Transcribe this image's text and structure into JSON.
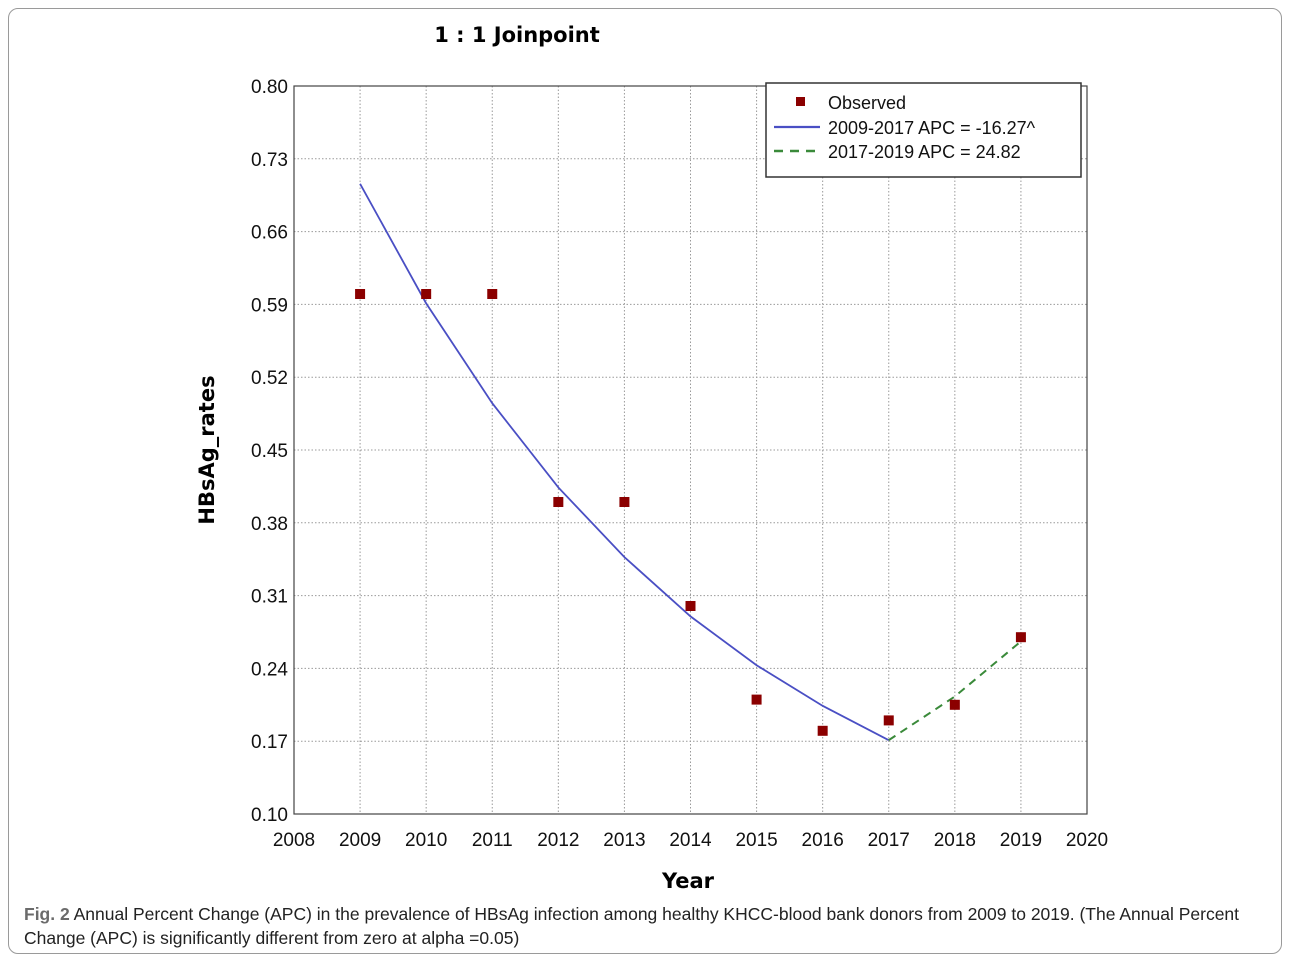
{
  "chart_data": {
    "type": "line",
    "title": "1 : 1 Joinpoint",
    "xlabel": "Year",
    "ylabel": "HBsAg_rates",
    "xlim": [
      2008,
      2020
    ],
    "ylim": [
      0.1,
      0.8
    ],
    "xticks": [
      2008,
      2009,
      2010,
      2011,
      2012,
      2013,
      2014,
      2015,
      2016,
      2017,
      2018,
      2019,
      2020
    ],
    "yticks": [
      "0.10",
      "0.17",
      "0.24",
      "0.31",
      "0.38",
      "0.45",
      "0.52",
      "0.59",
      "0.66",
      "0.73",
      "0.80"
    ],
    "grid": true,
    "legend_position": "top-right",
    "series": [
      {
        "name": "Observed",
        "kind": "scatter",
        "color": "#8b0000",
        "x": [
          2009,
          2010,
          2011,
          2012,
          2013,
          2014,
          2015,
          2016,
          2017,
          2018,
          2019
        ],
        "y": [
          0.6,
          0.6,
          0.6,
          0.4,
          0.4,
          0.3,
          0.21,
          0.18,
          0.19,
          0.205,
          0.27
        ]
      },
      {
        "name": "2009-2017 APC   = -16.27^",
        "kind": "line",
        "color": "#4a4fc4",
        "x": [
          2009,
          2010,
          2011,
          2012,
          2013,
          2014,
          2015,
          2016,
          2017
        ],
        "y": [
          0.706,
          0.591,
          0.495,
          0.414,
          0.347,
          0.29,
          0.243,
          0.204,
          0.171
        ]
      },
      {
        "name": "2017-2019 APC   =  24.82",
        "kind": "dashed-line",
        "color": "#3a8a3a",
        "x": [
          2017,
          2018,
          2019
        ],
        "y": [
          0.171,
          0.213,
          0.266
        ]
      }
    ]
  },
  "caption": {
    "label": "Fig. 2",
    "text": "Annual Percent Change (APC) in the prevalence of HBsAg infection among healthy KHCC-blood bank donors from 2009 to 2019. (The Annual Percent Change (APC) is significantly different from zero at alpha =0.05)"
  }
}
